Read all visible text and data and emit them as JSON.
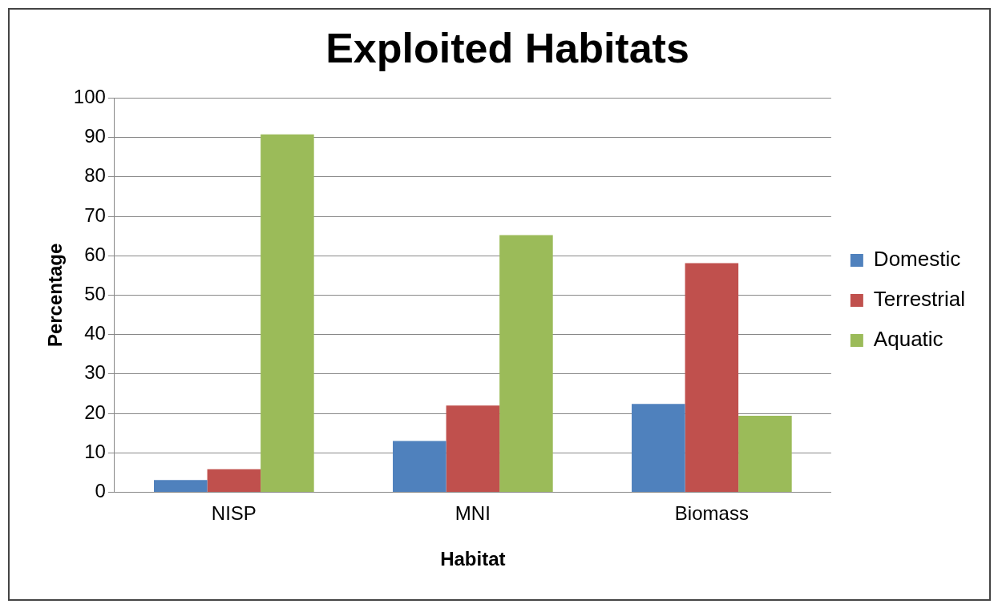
{
  "chart_data": {
    "type": "bar",
    "title": "Exploited Habitats",
    "xlabel": "Habitat",
    "ylabel": "Percentage",
    "categories": [
      "NISP",
      "MNI",
      "Biomass"
    ],
    "series": [
      {
        "name": "Domestic",
        "color": "#4f81bd",
        "values": [
          3.1,
          13,
          22.4
        ]
      },
      {
        "name": "Terrestrial",
        "color": "#c0504d",
        "values": [
          5.8,
          22,
          58.1
        ]
      },
      {
        "name": "Aquatic",
        "color": "#9bbb59",
        "values": [
          90.8,
          65.2,
          19.4
        ]
      }
    ],
    "ylim": [
      0,
      100
    ],
    "yticks": [
      0,
      10,
      20,
      30,
      40,
      50,
      60,
      70,
      80,
      90,
      100
    ],
    "grid": "y",
    "legend": "right"
  }
}
